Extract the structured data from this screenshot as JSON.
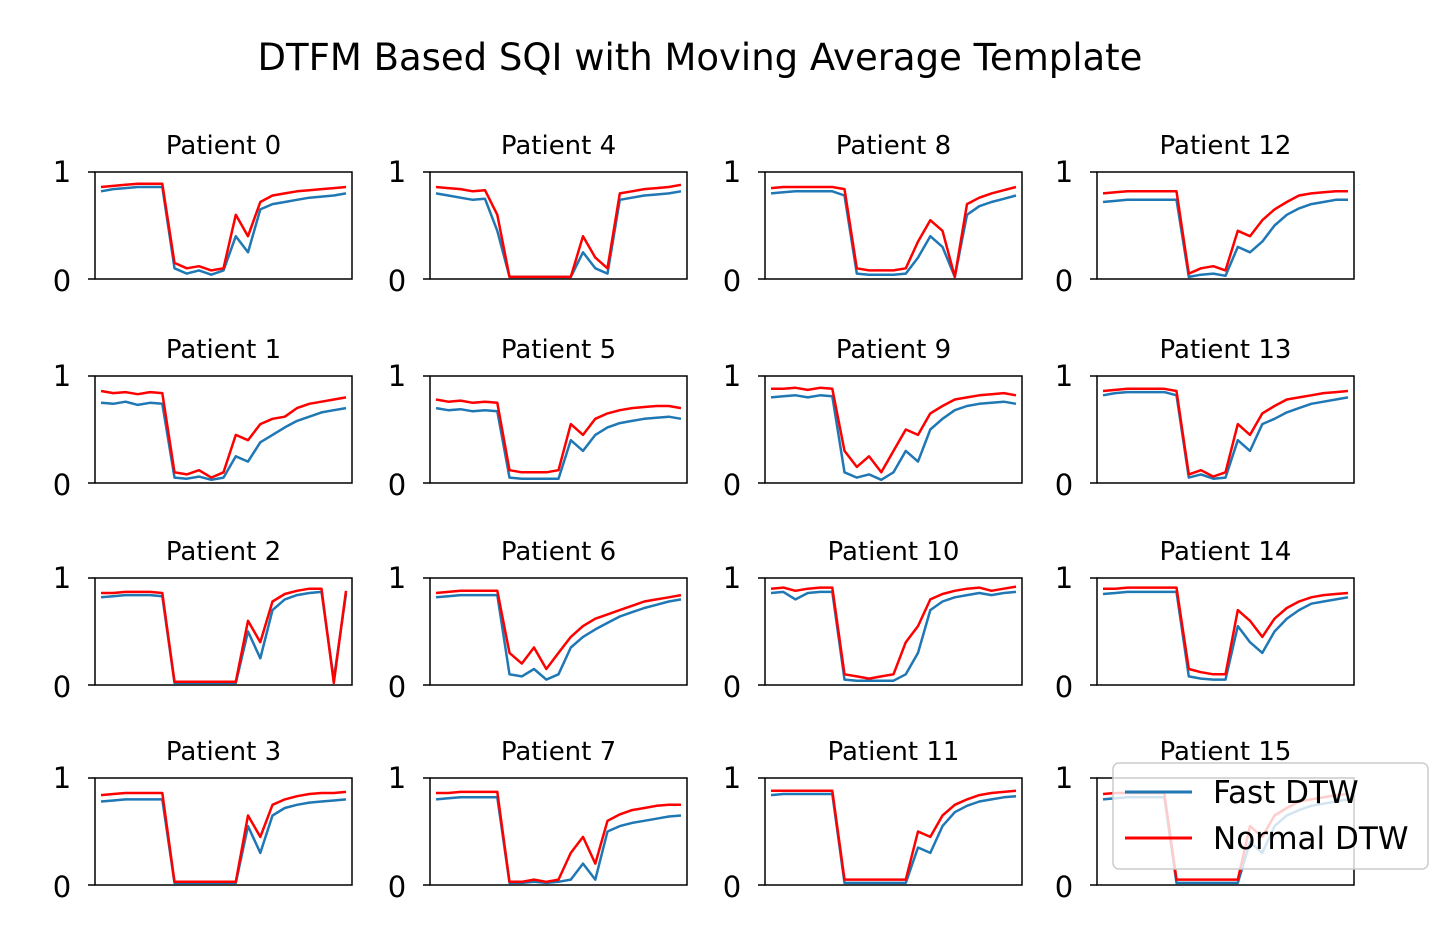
{
  "figure": {
    "title": "DTFM Based SQI with Moving Average Template"
  },
  "chart_data": {
    "type": "line",
    "title": "DTFM Based SQI with Moving Average Template",
    "layout": "4 rows x 4 columns, patients ordered down columns",
    "ylim": [
      0,
      1
    ],
    "yticks": [
      "0",
      "1"
    ],
    "xticks": "none",
    "grid": false,
    "legend": {
      "placement": "upper-right of last panel",
      "entries": [
        "Fast DTW",
        "Normal DTW"
      ]
    },
    "colors": {
      "Fast DTW": "#1f77b4",
      "Normal DTW": "#ff0000"
    },
    "series_names": [
      "Fast DTW",
      "Normal DTW"
    ],
    "x": [
      0,
      0.05,
      0.1,
      0.15,
      0.2,
      0.25,
      0.3,
      0.35,
      0.4,
      0.45,
      0.5,
      0.55,
      0.6,
      0.65,
      0.7,
      0.75,
      0.8,
      0.85,
      0.9,
      0.95,
      1.0
    ],
    "panels": [
      {
        "title": "Patient 0",
        "series": [
          {
            "name": "Fast DTW",
            "values": [
              0.82,
              0.84,
              0.85,
              0.86,
              0.86,
              0.86,
              0.1,
              0.05,
              0.08,
              0.04,
              0.08,
              0.4,
              0.25,
              0.65,
              0.7,
              0.72,
              0.74,
              0.76,
              0.77,
              0.78,
              0.8
            ]
          },
          {
            "name": "Normal DTW",
            "values": [
              0.86,
              0.87,
              0.88,
              0.89,
              0.89,
              0.89,
              0.15,
              0.1,
              0.12,
              0.08,
              0.1,
              0.6,
              0.4,
              0.72,
              0.78,
              0.8,
              0.82,
              0.83,
              0.84,
              0.85,
              0.86
            ]
          }
        ]
      },
      {
        "title": "Patient 1",
        "series": [
          {
            "name": "Fast DTW",
            "values": [
              0.75,
              0.74,
              0.76,
              0.73,
              0.75,
              0.74,
              0.05,
              0.04,
              0.06,
              0.03,
              0.05,
              0.25,
              0.2,
              0.38,
              0.45,
              0.52,
              0.58,
              0.62,
              0.66,
              0.68,
              0.7
            ]
          },
          {
            "name": "Normal DTW",
            "values": [
              0.86,
              0.84,
              0.85,
              0.83,
              0.85,
              0.84,
              0.1,
              0.08,
              0.12,
              0.05,
              0.1,
              0.45,
              0.4,
              0.55,
              0.6,
              0.62,
              0.7,
              0.74,
              0.76,
              0.78,
              0.8
            ]
          }
        ]
      },
      {
        "title": "Patient 2",
        "series": [
          {
            "name": "Fast DTW",
            "values": [
              0.82,
              0.83,
              0.84,
              0.84,
              0.84,
              0.83,
              0.02,
              0.02,
              0.02,
              0.02,
              0.02,
              0.02,
              0.5,
              0.25,
              0.7,
              0.8,
              0.84,
              0.86,
              0.87,
              0.05,
              0.85
            ]
          },
          {
            "name": "Normal DTW",
            "values": [
              0.86,
              0.86,
              0.87,
              0.87,
              0.87,
              0.86,
              0.03,
              0.03,
              0.03,
              0.03,
              0.03,
              0.03,
              0.6,
              0.4,
              0.78,
              0.85,
              0.88,
              0.9,
              0.9,
              0.02,
              0.88
            ]
          }
        ]
      },
      {
        "title": "Patient 3",
        "series": [
          {
            "name": "Fast DTW",
            "values": [
              0.78,
              0.79,
              0.8,
              0.8,
              0.8,
              0.8,
              0.02,
              0.02,
              0.02,
              0.02,
              0.02,
              0.02,
              0.55,
              0.3,
              0.65,
              0.72,
              0.75,
              0.77,
              0.78,
              0.79,
              0.8
            ]
          },
          {
            "name": "Normal DTW",
            "values": [
              0.84,
              0.85,
              0.86,
              0.86,
              0.86,
              0.86,
              0.03,
              0.03,
              0.03,
              0.03,
              0.03,
              0.03,
              0.65,
              0.45,
              0.75,
              0.8,
              0.83,
              0.85,
              0.86,
              0.86,
              0.87
            ]
          }
        ]
      },
      {
        "title": "Patient 4",
        "series": [
          {
            "name": "Fast DTW",
            "values": [
              0.8,
              0.78,
              0.76,
              0.74,
              0.75,
              0.45,
              0.02,
              0.02,
              0.02,
              0.02,
              0.02,
              0.02,
              0.25,
              0.1,
              0.05,
              0.74,
              0.76,
              0.78,
              0.79,
              0.8,
              0.82
            ]
          },
          {
            "name": "Normal DTW",
            "values": [
              0.86,
              0.85,
              0.84,
              0.82,
              0.83,
              0.6,
              0.02,
              0.02,
              0.02,
              0.02,
              0.02,
              0.02,
              0.4,
              0.2,
              0.1,
              0.8,
              0.82,
              0.84,
              0.85,
              0.86,
              0.88
            ]
          }
        ]
      },
      {
        "title": "Patient 5",
        "series": [
          {
            "name": "Fast DTW",
            "values": [
              0.7,
              0.68,
              0.69,
              0.67,
              0.68,
              0.67,
              0.05,
              0.04,
              0.04,
              0.04,
              0.04,
              0.4,
              0.3,
              0.45,
              0.52,
              0.56,
              0.58,
              0.6,
              0.61,
              0.62,
              0.6
            ]
          },
          {
            "name": "Normal DTW",
            "values": [
              0.78,
              0.76,
              0.77,
              0.75,
              0.76,
              0.75,
              0.12,
              0.1,
              0.1,
              0.1,
              0.12,
              0.55,
              0.45,
              0.6,
              0.65,
              0.68,
              0.7,
              0.71,
              0.72,
              0.72,
              0.7
            ]
          }
        ]
      },
      {
        "title": "Patient 6",
        "series": [
          {
            "name": "Fast DTW",
            "values": [
              0.82,
              0.83,
              0.84,
              0.84,
              0.84,
              0.84,
              0.1,
              0.08,
              0.15,
              0.05,
              0.1,
              0.35,
              0.45,
              0.52,
              0.58,
              0.64,
              0.68,
              0.72,
              0.75,
              0.78,
              0.8
            ]
          },
          {
            "name": "Normal DTW",
            "values": [
              0.86,
              0.87,
              0.88,
              0.88,
              0.88,
              0.88,
              0.3,
              0.2,
              0.35,
              0.15,
              0.3,
              0.45,
              0.55,
              0.62,
              0.66,
              0.7,
              0.74,
              0.78,
              0.8,
              0.82,
              0.84
            ]
          }
        ]
      },
      {
        "title": "Patient 7",
        "series": [
          {
            "name": "Fast DTW",
            "values": [
              0.8,
              0.81,
              0.82,
              0.82,
              0.82,
              0.82,
              0.02,
              0.02,
              0.03,
              0.02,
              0.03,
              0.05,
              0.2,
              0.05,
              0.5,
              0.55,
              0.58,
              0.6,
              0.62,
              0.64,
              0.65
            ]
          },
          {
            "name": "Normal DTW",
            "values": [
              0.86,
              0.86,
              0.87,
              0.87,
              0.87,
              0.87,
              0.03,
              0.03,
              0.05,
              0.03,
              0.05,
              0.3,
              0.45,
              0.2,
              0.6,
              0.66,
              0.7,
              0.72,
              0.74,
              0.75,
              0.75
            ]
          }
        ]
      },
      {
        "title": "Patient 8",
        "series": [
          {
            "name": "Fast DTW",
            "values": [
              0.8,
              0.81,
              0.82,
              0.82,
              0.82,
              0.82,
              0.78,
              0.05,
              0.04,
              0.04,
              0.04,
              0.05,
              0.2,
              0.4,
              0.3,
              0.02,
              0.6,
              0.68,
              0.72,
              0.75,
              0.78
            ]
          },
          {
            "name": "Normal DTW",
            "values": [
              0.85,
              0.86,
              0.86,
              0.86,
              0.86,
              0.86,
              0.84,
              0.1,
              0.08,
              0.08,
              0.08,
              0.1,
              0.35,
              0.55,
              0.45,
              0.02,
              0.7,
              0.76,
              0.8,
              0.83,
              0.86
            ]
          }
        ]
      },
      {
        "title": "Patient 9",
        "series": [
          {
            "name": "Fast DTW",
            "values": [
              0.8,
              0.81,
              0.82,
              0.8,
              0.82,
              0.81,
              0.1,
              0.05,
              0.08,
              0.03,
              0.1,
              0.3,
              0.2,
              0.5,
              0.6,
              0.68,
              0.72,
              0.74,
              0.75,
              0.76,
              0.74
            ]
          },
          {
            "name": "Normal DTW",
            "values": [
              0.88,
              0.88,
              0.89,
              0.87,
              0.89,
              0.88,
              0.3,
              0.15,
              0.25,
              0.1,
              0.3,
              0.5,
              0.45,
              0.65,
              0.72,
              0.78,
              0.8,
              0.82,
              0.83,
              0.84,
              0.82
            ]
          }
        ]
      },
      {
        "title": "Patient 10",
        "series": [
          {
            "name": "Fast DTW",
            "values": [
              0.86,
              0.87,
              0.8,
              0.86,
              0.87,
              0.87,
              0.05,
              0.04,
              0.04,
              0.04,
              0.04,
              0.1,
              0.3,
              0.7,
              0.78,
              0.82,
              0.84,
              0.86,
              0.84,
              0.86,
              0.87
            ]
          },
          {
            "name": "Normal DTW",
            "values": [
              0.9,
              0.91,
              0.88,
              0.9,
              0.91,
              0.91,
              0.1,
              0.08,
              0.06,
              0.08,
              0.1,
              0.4,
              0.55,
              0.8,
              0.85,
              0.88,
              0.9,
              0.91,
              0.88,
              0.9,
              0.92
            ]
          }
        ]
      },
      {
        "title": "Patient 11",
        "series": [
          {
            "name": "Fast DTW",
            "values": [
              0.84,
              0.85,
              0.85,
              0.85,
              0.85,
              0.85,
              0.02,
              0.02,
              0.02,
              0.02,
              0.02,
              0.02,
              0.35,
              0.3,
              0.55,
              0.68,
              0.74,
              0.78,
              0.8,
              0.82,
              0.83
            ]
          },
          {
            "name": "Normal DTW",
            "values": [
              0.88,
              0.88,
              0.88,
              0.88,
              0.88,
              0.88,
              0.05,
              0.05,
              0.05,
              0.05,
              0.05,
              0.05,
              0.5,
              0.45,
              0.65,
              0.75,
              0.8,
              0.84,
              0.86,
              0.87,
              0.88
            ]
          }
        ]
      },
      {
        "title": "Patient 12",
        "series": [
          {
            "name": "Fast DTW",
            "values": [
              0.72,
              0.73,
              0.74,
              0.74,
              0.74,
              0.74,
              0.74,
              0.02,
              0.04,
              0.05,
              0.03,
              0.3,
              0.25,
              0.35,
              0.5,
              0.6,
              0.66,
              0.7,
              0.72,
              0.74,
              0.74
            ]
          },
          {
            "name": "Normal DTW",
            "values": [
              0.8,
              0.81,
              0.82,
              0.82,
              0.82,
              0.82,
              0.82,
              0.05,
              0.1,
              0.12,
              0.08,
              0.45,
              0.4,
              0.55,
              0.65,
              0.72,
              0.78,
              0.8,
              0.81,
              0.82,
              0.82
            ]
          }
        ]
      },
      {
        "title": "Patient 13",
        "series": [
          {
            "name": "Fast DTW",
            "values": [
              0.82,
              0.84,
              0.85,
              0.85,
              0.85,
              0.85,
              0.82,
              0.05,
              0.08,
              0.04,
              0.05,
              0.4,
              0.3,
              0.55,
              0.6,
              0.66,
              0.7,
              0.74,
              0.76,
              0.78,
              0.8
            ]
          },
          {
            "name": "Normal DTW",
            "values": [
              0.86,
              0.87,
              0.88,
              0.88,
              0.88,
              0.88,
              0.86,
              0.08,
              0.12,
              0.06,
              0.1,
              0.55,
              0.45,
              0.65,
              0.72,
              0.78,
              0.8,
              0.82,
              0.84,
              0.85,
              0.86
            ]
          }
        ]
      },
      {
        "title": "Patient 14",
        "series": [
          {
            "name": "Fast DTW",
            "values": [
              0.85,
              0.86,
              0.87,
              0.87,
              0.87,
              0.87,
              0.87,
              0.08,
              0.06,
              0.05,
              0.05,
              0.55,
              0.4,
              0.3,
              0.5,
              0.62,
              0.7,
              0.76,
              0.78,
              0.8,
              0.82
            ]
          },
          {
            "name": "Normal DTW",
            "values": [
              0.9,
              0.9,
              0.91,
              0.91,
              0.91,
              0.91,
              0.91,
              0.15,
              0.12,
              0.1,
              0.1,
              0.7,
              0.6,
              0.45,
              0.62,
              0.72,
              0.78,
              0.82,
              0.84,
              0.85,
              0.86
            ]
          }
        ]
      },
      {
        "title": "Patient 15",
        "series": [
          {
            "name": "Fast DTW",
            "values": [
              0.8,
              0.81,
              0.82,
              0.82,
              0.82,
              0.82,
              0.02,
              0.02,
              0.02,
              0.02,
              0.02,
              0.02,
              0.4,
              0.3,
              0.55,
              0.65,
              0.7,
              0.74,
              0.76,
              0.78,
              0.8
            ]
          },
          {
            "name": "Normal DTW",
            "values": [
              0.85,
              0.86,
              0.86,
              0.86,
              0.86,
              0.86,
              0.05,
              0.05,
              0.05,
              0.05,
              0.05,
              0.05,
              0.55,
              0.45,
              0.65,
              0.72,
              0.78,
              0.8,
              0.82,
              0.84,
              0.85
            ]
          }
        ]
      }
    ]
  }
}
